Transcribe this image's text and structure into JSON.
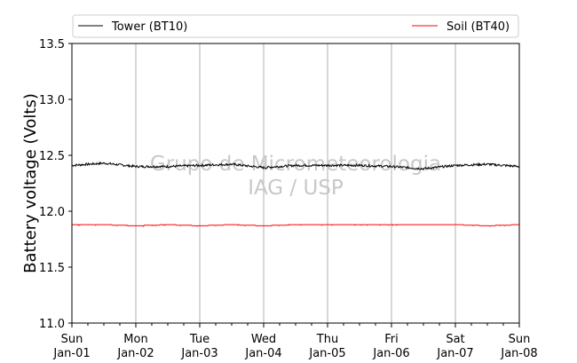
{
  "chart_data": {
    "type": "line",
    "ylabel": "Battery voltage (Volts)",
    "xlabel": "",
    "title": "",
    "ylim": [
      11.0,
      13.5
    ],
    "yticks": [
      "11.0",
      "11.5",
      "12.0",
      "12.5",
      "13.0",
      "13.5"
    ],
    "xlim": [
      "2000-01-01",
      "2000-01-08"
    ],
    "xticks": [
      {
        "day": "Sun",
        "date": "Jan-01"
      },
      {
        "day": "Mon",
        "date": "Jan-02"
      },
      {
        "day": "Tue",
        "date": "Jan-03"
      },
      {
        "day": "Wed",
        "date": "Jan-04"
      },
      {
        "day": "Thu",
        "date": "Jan-05"
      },
      {
        "day": "Fri",
        "date": "Jan-06"
      },
      {
        "day": "Sat",
        "date": "Jan-07"
      },
      {
        "day": "Sun",
        "date": "Jan-08"
      }
    ],
    "grid": "vertical",
    "legend_position": "top",
    "series": [
      {
        "name": "Tower (BT10)",
        "color": "#000000",
        "x": [
          "Jan-01",
          "Jan-01 12:00",
          "Jan-02",
          "Jan-02 12:00",
          "Jan-03",
          "Jan-03 12:00",
          "Jan-04",
          "Jan-04 12:00",
          "Jan-05",
          "Jan-05 12:00",
          "Jan-06",
          "Jan-06 12:00",
          "Jan-07",
          "Jan-07 12:00",
          "Jan-08"
        ],
        "values": [
          12.41,
          12.43,
          12.4,
          12.4,
          12.41,
          12.42,
          12.39,
          12.41,
          12.41,
          12.41,
          12.4,
          12.38,
          12.41,
          12.42,
          12.4
        ]
      },
      {
        "name": "Soil (BT40)",
        "color": "#ff0000",
        "x": [
          "Jan-01",
          "Jan-01 12:00",
          "Jan-02",
          "Jan-02 12:00",
          "Jan-03",
          "Jan-03 12:00",
          "Jan-04",
          "Jan-04 12:00",
          "Jan-05",
          "Jan-05 12:00",
          "Jan-06",
          "Jan-06 12:00",
          "Jan-07",
          "Jan-07 12:00",
          "Jan-08"
        ],
        "values": [
          11.88,
          11.88,
          11.87,
          11.88,
          11.87,
          11.88,
          11.87,
          11.88,
          11.88,
          11.88,
          11.88,
          11.88,
          11.88,
          11.87,
          11.88
        ]
      }
    ],
    "watermark": [
      "Grupo de Micrometeorologia",
      "IAG / USP"
    ]
  }
}
